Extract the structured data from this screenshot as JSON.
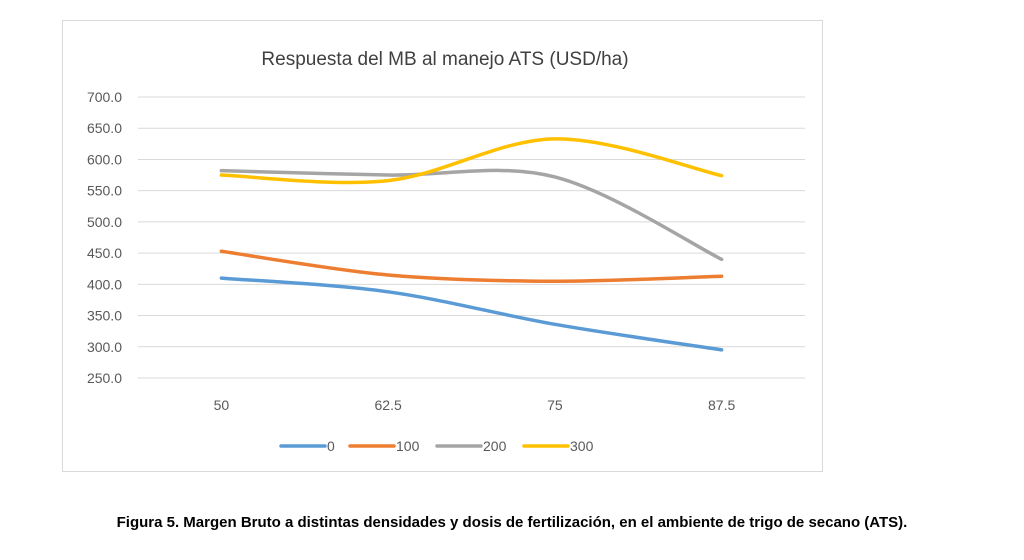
{
  "chart_data": {
    "type": "line",
    "title": "Respuesta  del MB al manejo ATS (USD/ha)",
    "categories": [
      "50",
      "62.5",
      "75",
      "87.5"
    ],
    "y_ticks": [
      "700.0",
      "650.0",
      "600.0",
      "550.0",
      "500.0",
      "450.0",
      "400.0",
      "350.0",
      "300.0",
      "250.0"
    ],
    "ylim": [
      250,
      700
    ],
    "grid": true,
    "smooth": true,
    "legend_position": "bottom",
    "series": [
      {
        "name": "0",
        "color": "#5b9bd5",
        "values": [
          410,
          388,
          336,
          295
        ]
      },
      {
        "name": "100",
        "color": "#ed7d31",
        "values": [
          453,
          415,
          405,
          413
        ]
      },
      {
        "name": "200",
        "color": "#a5a5a5",
        "values": [
          582,
          575,
          572,
          440
        ]
      },
      {
        "name": "300",
        "color": "#ffc000",
        "values": [
          575,
          566,
          633,
          574
        ]
      }
    ]
  },
  "caption": "Figura 5. Margen Bruto a distintas densidades y dosis de fertilización, en el ambiente de trigo de secano (ATS)."
}
